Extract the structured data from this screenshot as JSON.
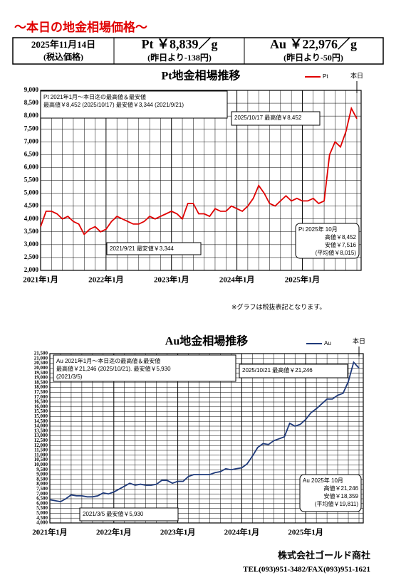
{
  "header": {
    "title": "～本日の地金相場価格～",
    "date": "2025年11月14日",
    "tax_note": "(税込価格)",
    "pt_price": "Pt ￥8,839／g",
    "pt_change": "(昨日より-138円)",
    "au_price": "Au ￥22,976／g",
    "au_change": "(昨日より-50円)"
  },
  "note": "※グラフは税抜表記となります。",
  "footer": {
    "company": "株式会社ゴールド商社",
    "contact": "TEL(093)951-3482/FAX(093)951-1621"
  },
  "chart_data": [
    {
      "type": "line",
      "title": "Pt地金相場推移",
      "today_label": "本日",
      "categories": [
        "2021年1月",
        null,
        null,
        null,
        null,
        null,
        null,
        null,
        null,
        null,
        null,
        null,
        "2022年1月",
        null,
        null,
        null,
        null,
        null,
        null,
        null,
        null,
        null,
        null,
        null,
        "2023年1月",
        null,
        null,
        null,
        null,
        null,
        null,
        null,
        null,
        null,
        null,
        null,
        "2024年1月",
        null,
        null,
        null,
        null,
        null,
        null,
        null,
        null,
        null,
        null,
        null,
        "2025年1月",
        null,
        null,
        null,
        null,
        null,
        null,
        null,
        null,
        null,
        null
      ],
      "series": [
        {
          "name": "Pt",
          "color": "#e00000",
          "values": [
            3700,
            4300,
            4300,
            4200,
            4000,
            4100,
            3900,
            3800,
            3400,
            3600,
            3700,
            3500,
            3600,
            3900,
            4100,
            4000,
            3900,
            3800,
            3800,
            3900,
            4100,
            4000,
            4100,
            4200,
            4300,
            4200,
            4000,
            4600,
            4600,
            4200,
            4200,
            4100,
            4400,
            4300,
            4300,
            4500,
            4400,
            4300,
            4500,
            4800,
            5300,
            5000,
            4600,
            4500,
            4700,
            4900,
            4700,
            4800,
            4700,
            4700,
            4800,
            4600,
            4700,
            6500,
            7000,
            6800,
            7400,
            8300,
            7900
          ]
        }
      ],
      "ylim": [
        2000,
        9000
      ],
      "yticks": [
        {
          "value": 2000,
          "label": "2,000"
        },
        {
          "value": 2500,
          "label": "2,500"
        },
        {
          "value": 3000,
          "label": "3,000"
        },
        {
          "value": 3500,
          "label": "3,500"
        },
        {
          "value": 4000,
          "label": "4,000"
        },
        {
          "value": 4500,
          "label": "4,500"
        },
        {
          "value": 5000,
          "label": "5,000"
        },
        {
          "value": 5500,
          "label": "5,500"
        },
        {
          "value": 6000,
          "label": "6,000"
        },
        {
          "value": 6500,
          "label": "6,500"
        },
        {
          "value": 7000,
          "label": "7,000"
        },
        {
          "value": 7500,
          "label": "7,500"
        },
        {
          "value": 8000,
          "label": "8,000"
        },
        {
          "value": 8500,
          "label": "8,500"
        },
        {
          "value": 9000,
          "label": "9,000"
        }
      ],
      "grid": true,
      "annotations": [
        {
          "lines": [
            "Pt  2021年1月～本日迄の最高値＆最安値",
            "最高値￥8,452 (2025/10/17)   最安値￥3,344 (2021/9/21)"
          ]
        },
        {
          "lines": [
            "2025/10/17  最高値￥8,452"
          ]
        },
        {
          "lines": [
            "2021/9/21  最安値￥3,344"
          ]
        },
        {
          "lines": [
            "Pt  2025年 10月",
            "高値￥8,452",
            "安値￥7,516",
            "(平均値￥8,015)"
          ]
        }
      ]
    },
    {
      "type": "line",
      "title": "Au地金相場推移",
      "today_label": "本日",
      "categories": [
        "2021年1月",
        null,
        null,
        null,
        null,
        null,
        null,
        null,
        null,
        null,
        null,
        null,
        "2022年1月",
        null,
        null,
        null,
        null,
        null,
        null,
        null,
        null,
        null,
        null,
        null,
        "2023年1月",
        null,
        null,
        null,
        null,
        null,
        null,
        null,
        null,
        null,
        null,
        null,
        "2024年1月",
        null,
        null,
        null,
        null,
        null,
        null,
        null,
        null,
        null,
        null,
        null,
        "2025年1月",
        null,
        null,
        null,
        null,
        null,
        null,
        null,
        null,
        null,
        null
      ],
      "series": [
        {
          "name": "Au",
          "color": "#1f3a7a",
          "values": [
            6400,
            6300,
            6200,
            6500,
            6900,
            6800,
            6800,
            6700,
            6700,
            6800,
            7100,
            7000,
            7200,
            7500,
            7800,
            8100,
            7900,
            8000,
            7900,
            7900,
            8000,
            8400,
            8400,
            8100,
            8300,
            8300,
            8800,
            9000,
            9000,
            9000,
            9000,
            9200,
            9300,
            9600,
            9500,
            9600,
            9700,
            10100,
            10900,
            11800,
            12200,
            12100,
            12500,
            12700,
            12900,
            14300,
            14000,
            14200,
            14700,
            15400,
            15800,
            16300,
            16800,
            16800,
            17200,
            17400,
            18600,
            20600,
            20000
          ]
        }
      ],
      "ylim": [
        4000,
        21500
      ],
      "yticks": [
        {
          "value": 4000,
          "label": "4,000"
        },
        {
          "value": 4500,
          "label": "4,500"
        },
        {
          "value": 5000,
          "label": "5,000"
        },
        {
          "value": 5500,
          "label": "5,500"
        },
        {
          "value": 6000,
          "label": "6,000"
        },
        {
          "value": 6500,
          "label": "6,500"
        },
        {
          "value": 7000,
          "label": "7,000"
        },
        {
          "value": 7500,
          "label": "7,500"
        },
        {
          "value": 8000,
          "label": "8,000"
        },
        {
          "value": 8500,
          "label": "8,500"
        },
        {
          "value": 9000,
          "label": "9,000"
        },
        {
          "value": 9500,
          "label": "9,500"
        },
        {
          "value": 10000,
          "label": "10,000"
        },
        {
          "value": 10500,
          "label": "10,500"
        },
        {
          "value": 11000,
          "label": "11,000"
        },
        {
          "value": 11500,
          "label": "11,500"
        },
        {
          "value": 12000,
          "label": "12,000"
        },
        {
          "value": 12500,
          "label": "12,500"
        },
        {
          "value": 13000,
          "label": "13,000"
        },
        {
          "value": 13500,
          "label": "13,500"
        },
        {
          "value": 14000,
          "label": "14,000"
        },
        {
          "value": 14500,
          "label": "14,500"
        },
        {
          "value": 15000,
          "label": "15,000"
        },
        {
          "value": 15500,
          "label": "15,500"
        },
        {
          "value": 16000,
          "label": "16,000"
        },
        {
          "value": 16500,
          "label": "16,500"
        },
        {
          "value": 17000,
          "label": "17,000"
        },
        {
          "value": 17500,
          "label": "17,500"
        },
        {
          "value": 18000,
          "label": "18,000"
        },
        {
          "value": 18500,
          "label": "18,500"
        },
        {
          "value": 19000,
          "label": "19,000"
        },
        {
          "value": 19500,
          "label": "19,500"
        },
        {
          "value": 20000,
          "label": "20,000"
        },
        {
          "value": 20500,
          "label": "20,500"
        },
        {
          "value": 21000,
          "label": "21,000"
        },
        {
          "value": 21500,
          "label": "21,500"
        }
      ],
      "grid": true,
      "annotations": [
        {
          "lines": [
            "Au  2021年1月～本日迄の最高値＆最安値",
            "最高値￥21,246 (2025/10/21).   最安値￥5,930",
            "(2021/3/5)"
          ]
        },
        {
          "lines": [
            "2025/10/21   最高値￥21,246"
          ]
        },
        {
          "lines": [
            "2021/3/5   最安値￥5,930"
          ]
        },
        {
          "lines": [
            "Au  2025年 10月",
            "高値￥21,246",
            "安値￥18,359",
            "(平均値￥19,811)"
          ]
        }
      ]
    }
  ]
}
